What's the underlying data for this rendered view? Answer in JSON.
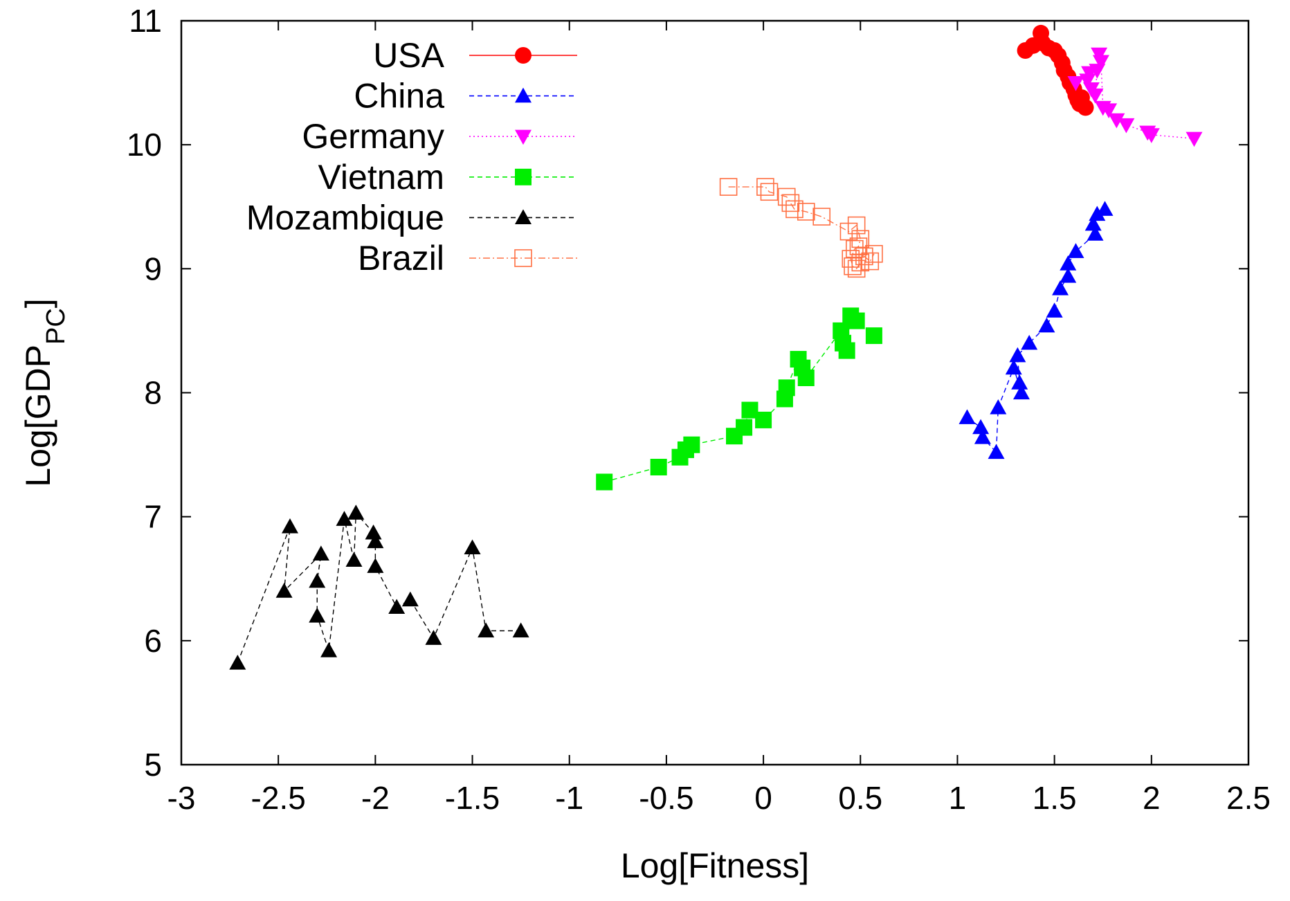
{
  "chart_data": {
    "type": "scatter",
    "title": "",
    "xlabel": "Log[Fitness]",
    "ylabel": {
      "base": "Log[GDP",
      "subscript": "PC",
      "close": "]"
    },
    "xlim": [
      -3,
      2.5
    ],
    "ylim": [
      5,
      11
    ],
    "xticks": [
      -3,
      -2.5,
      -2,
      -1.5,
      -1,
      -0.5,
      0,
      0.5,
      1,
      1.5,
      2,
      2.5
    ],
    "xtick_labels": [
      "-3",
      "-2.5",
      "-2",
      "-1.5",
      "-1",
      "-0.5",
      "0",
      "0.5",
      "1",
      "1.5",
      "2",
      "2.5"
    ],
    "yticks": [
      5,
      6,
      7,
      8,
      9,
      10,
      11
    ],
    "ytick_labels": [
      "5",
      "6",
      "7",
      "8",
      "9",
      "10",
      "11"
    ],
    "grid": false,
    "legend_position": "top-left",
    "series": [
      {
        "name": "USA",
        "color": "#ff0000",
        "marker": "circle",
        "line": "solid",
        "points": [
          [
            1.35,
            10.76
          ],
          [
            1.39,
            10.8
          ],
          [
            1.43,
            10.9
          ],
          [
            1.44,
            10.82
          ],
          [
            1.47,
            10.78
          ],
          [
            1.5,
            10.76
          ],
          [
            1.52,
            10.72
          ],
          [
            1.54,
            10.66
          ],
          [
            1.55,
            10.6
          ],
          [
            1.57,
            10.55
          ],
          [
            1.58,
            10.5
          ],
          [
            1.6,
            10.45
          ],
          [
            1.61,
            10.4
          ],
          [
            1.62,
            10.36
          ],
          [
            1.63,
            10.33
          ],
          [
            1.64,
            10.38
          ],
          [
            1.66,
            10.3
          ]
        ]
      },
      {
        "name": "China",
        "color": "#0000ff",
        "marker": "triangle-up",
        "line": "dashed",
        "points": [
          [
            1.05,
            7.8
          ],
          [
            1.12,
            7.72
          ],
          [
            1.13,
            7.64
          ],
          [
            1.2,
            7.52
          ],
          [
            1.21,
            7.88
          ],
          [
            1.29,
            8.2
          ],
          [
            1.33,
            8.0
          ],
          [
            1.32,
            8.08
          ],
          [
            1.31,
            8.3
          ],
          [
            1.37,
            8.4
          ],
          [
            1.46,
            8.54
          ],
          [
            1.5,
            8.66
          ],
          [
            1.53,
            8.84
          ],
          [
            1.57,
            8.94
          ],
          [
            1.57,
            9.04
          ],
          [
            1.61,
            9.14
          ],
          [
            1.71,
            9.28
          ],
          [
            1.7,
            9.36
          ],
          [
            1.72,
            9.44
          ],
          [
            1.76,
            9.48
          ]
        ]
      },
      {
        "name": "Germany",
        "color": "#ff00ff",
        "marker": "triangle-down",
        "line": "dotted",
        "points": [
          [
            1.61,
            10.5
          ],
          [
            1.67,
            10.52
          ],
          [
            1.68,
            10.58
          ],
          [
            1.69,
            10.45
          ],
          [
            1.71,
            10.4
          ],
          [
            1.72,
            10.6
          ],
          [
            1.73,
            10.73
          ],
          [
            1.74,
            10.67
          ],
          [
            1.75,
            10.3
          ],
          [
            1.78,
            10.28
          ],
          [
            1.82,
            10.2
          ],
          [
            1.87,
            10.16
          ],
          [
            1.98,
            10.1
          ],
          [
            2.0,
            10.08
          ],
          [
            2.22,
            10.05
          ]
        ]
      },
      {
        "name": "Vietnam",
        "color": "#00ee00",
        "marker": "square",
        "line": "dashed",
        "points": [
          [
            -0.82,
            7.28
          ],
          [
            -0.54,
            7.4
          ],
          [
            -0.43,
            7.48
          ],
          [
            -0.4,
            7.54
          ],
          [
            -0.37,
            7.58
          ],
          [
            -0.15,
            7.65
          ],
          [
            -0.1,
            7.72
          ],
          [
            -0.07,
            7.86
          ],
          [
            0.0,
            7.78
          ],
          [
            0.11,
            7.95
          ],
          [
            0.12,
            8.04
          ],
          [
            0.18,
            8.27
          ],
          [
            0.2,
            8.2
          ],
          [
            0.22,
            8.12
          ],
          [
            0.4,
            8.5
          ],
          [
            0.41,
            8.4
          ],
          [
            0.43,
            8.34
          ],
          [
            0.45,
            8.62
          ],
          [
            0.48,
            8.58
          ],
          [
            0.57,
            8.46
          ]
        ]
      },
      {
        "name": "Mozambique",
        "color": "#000000",
        "marker": "triangle-up",
        "line": "dashed",
        "points": [
          [
            -2.71,
            5.82
          ],
          [
            -2.44,
            6.92
          ],
          [
            -2.47,
            6.4
          ],
          [
            -2.28,
            6.7
          ],
          [
            -2.3,
            6.48
          ],
          [
            -2.3,
            6.2
          ],
          [
            -2.24,
            5.92
          ],
          [
            -2.16,
            6.98
          ],
          [
            -2.11,
            6.65
          ],
          [
            -2.1,
            7.03
          ],
          [
            -2.01,
            6.87
          ],
          [
            -2.0,
            6.8
          ],
          [
            -2.0,
            6.6
          ],
          [
            -1.89,
            6.27
          ],
          [
            -1.82,
            6.33
          ],
          [
            -1.7,
            6.02
          ],
          [
            -1.5,
            6.75
          ],
          [
            -1.43,
            6.08
          ],
          [
            -1.25,
            6.08
          ]
        ]
      },
      {
        "name": "Brazil",
        "color": "#ff7043",
        "marker": "open-square",
        "line": "dash-dot",
        "points": [
          [
            -0.18,
            9.66
          ],
          [
            0.01,
            9.66
          ],
          [
            0.03,
            9.62
          ],
          [
            0.12,
            9.58
          ],
          [
            0.14,
            9.53
          ],
          [
            0.16,
            9.48
          ],
          [
            0.22,
            9.46
          ],
          [
            0.3,
            9.42
          ],
          [
            0.44,
            9.3
          ],
          [
            0.48,
            9.35
          ],
          [
            0.5,
            9.24
          ],
          [
            0.49,
            9.18
          ],
          [
            0.47,
            9.16
          ],
          [
            0.45,
            9.08
          ],
          [
            0.46,
            9.02
          ],
          [
            0.48,
            9.0
          ],
          [
            0.5,
            9.05
          ],
          [
            0.52,
            9.1
          ],
          [
            0.55,
            9.06
          ],
          [
            0.57,
            9.12
          ]
        ]
      }
    ]
  }
}
